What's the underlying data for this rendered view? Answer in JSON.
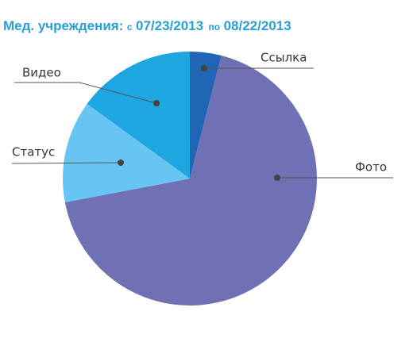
{
  "chart_data": {
    "type": "pie",
    "title": [
      "Мед. учреждения:",
      "с",
      "07/23/2013",
      "по",
      "08/22/2013"
    ],
    "categories": [
      "Ссылка",
      "Фото",
      "Статус",
      "Видео"
    ],
    "values": [
      4,
      68,
      13,
      15
    ],
    "colors": [
      "#2066b5",
      "#7070b5",
      "#66c5f3",
      "#1da6e0"
    ]
  }
}
